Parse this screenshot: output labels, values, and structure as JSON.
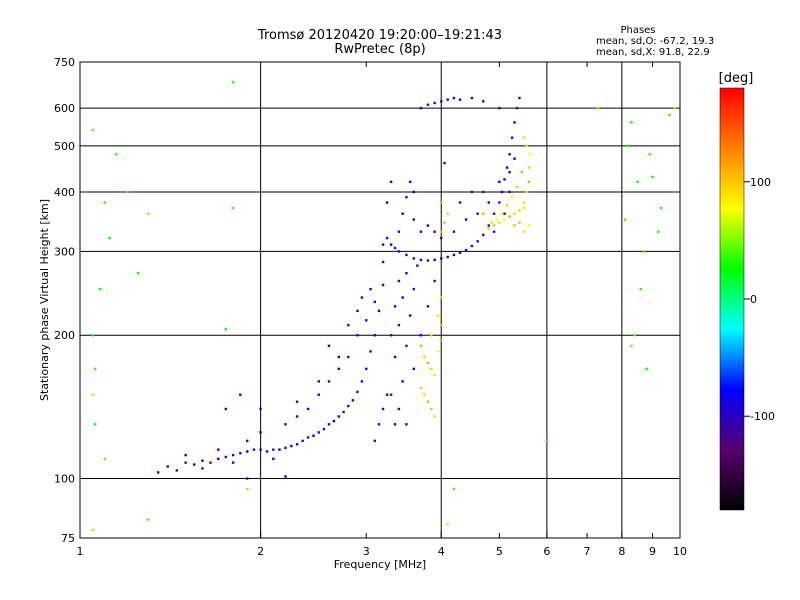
{
  "chart_data": {
    "type": "scatter",
    "title": "Tromsø 20120420 19:20:00–19:21:43",
    "subtitle": "RwPretec (8p)",
    "xlabel": "Frequency [MHz]",
    "ylabel": "Stationary phase Virtual Height [km]",
    "x_scale": "log",
    "y_scale": "log",
    "xlim": [
      1,
      10
    ],
    "ylim": [
      75,
      750
    ],
    "x_major_ticks": [
      1,
      2,
      4,
      6,
      8,
      10
    ],
    "x_minor_ticks": [
      3,
      5,
      7,
      9
    ],
    "y_ticks": [
      75,
      100,
      200,
      300,
      400,
      500,
      600,
      750
    ],
    "grid": true,
    "stats": {
      "heading": "Phases",
      "line1": "mean, sd,O:  -67.2, 19.3",
      "line2": "mean, sd,X:  91.8, 22.9"
    },
    "colorbar": {
      "label": "[deg]",
      "range": [
        -180,
        180
      ],
      "ticks": [
        100,
        0,
        -100
      ],
      "stops": [
        "#000000",
        "#5a0070",
        "#0000ff",
        "#00ffff",
        "#00ff00",
        "#ffff00",
        "#ff8000",
        "#ff0000"
      ]
    },
    "series": [
      {
        "trace": "O",
        "color_value": -95,
        "points": [
          [
            1.35,
            103
          ],
          [
            1.4,
            106
          ],
          [
            1.45,
            104
          ],
          [
            1.5,
            108
          ],
          [
            1.55,
            107
          ],
          [
            1.6,
            109
          ],
          [
            1.65,
            108
          ],
          [
            1.7,
            110
          ],
          [
            1.75,
            111
          ],
          [
            1.8,
            112
          ],
          [
            1.85,
            113
          ],
          [
            1.9,
            114
          ],
          [
            1.95,
            115
          ],
          [
            2.0,
            115
          ],
          [
            2.05,
            114
          ],
          [
            2.1,
            115
          ],
          [
            2.15,
            115
          ],
          [
            2.2,
            116
          ],
          [
            2.25,
            117
          ],
          [
            2.3,
            118
          ],
          [
            2.35,
            120
          ],
          [
            2.4,
            122
          ],
          [
            2.45,
            123
          ],
          [
            2.5,
            125
          ],
          [
            2.55,
            127
          ],
          [
            2.6,
            130
          ],
          [
            2.65,
            132
          ],
          [
            2.7,
            135
          ],
          [
            2.75,
            138
          ],
          [
            2.8,
            142
          ],
          [
            2.85,
            146
          ],
          [
            2.9,
            152
          ],
          [
            2.95,
            160
          ],
          [
            3.0,
            170
          ],
          [
            3.05,
            185
          ],
          [
            3.1,
            200
          ],
          [
            3.15,
            225
          ],
          [
            3.2,
            255
          ],
          [
            3.2,
            285
          ],
          [
            3.2,
            310
          ],
          [
            3.25,
            320
          ],
          [
            3.3,
            310
          ],
          [
            3.35,
            305
          ],
          [
            3.4,
            300
          ],
          [
            3.5,
            295
          ],
          [
            3.6,
            290
          ],
          [
            3.7,
            288
          ],
          [
            3.8,
            287
          ],
          [
            3.9,
            288
          ],
          [
            4.0,
            290
          ],
          [
            4.1,
            292
          ],
          [
            4.2,
            295
          ],
          [
            4.3,
            298
          ],
          [
            4.4,
            302
          ],
          [
            4.5,
            308
          ],
          [
            4.6,
            315
          ],
          [
            4.7,
            325
          ],
          [
            4.8,
            340
          ],
          [
            4.9,
            360
          ],
          [
            5.0,
            380
          ],
          [
            5.05,
            400
          ],
          [
            5.1,
            425
          ],
          [
            5.15,
            450
          ],
          [
            5.2,
            480
          ],
          [
            5.25,
            520
          ],
          [
            5.3,
            560
          ],
          [
            5.35,
            600
          ],
          [
            5.4,
            630
          ],
          [
            1.5,
            112
          ],
          [
            1.6,
            105
          ],
          [
            1.7,
            115
          ],
          [
            1.8,
            108
          ],
          [
            1.9,
            120
          ],
          [
            2.0,
            125
          ],
          [
            2.1,
            110
          ],
          [
            2.2,
            130
          ],
          [
            2.3,
            135
          ],
          [
            2.4,
            140
          ],
          [
            2.5,
            150
          ],
          [
            2.6,
            160
          ],
          [
            2.7,
            170
          ],
          [
            2.8,
            180
          ],
          [
            2.9,
            200
          ],
          [
            3.0,
            215
          ],
          [
            2.95,
            240
          ],
          [
            2.9,
            225
          ],
          [
            3.05,
            250
          ],
          [
            3.1,
            235
          ],
          [
            3.3,
            150
          ],
          [
            3.35,
            180
          ],
          [
            3.4,
            210
          ],
          [
            3.45,
            240
          ],
          [
            3.5,
            270
          ],
          [
            3.4,
            330
          ],
          [
            3.45,
            360
          ],
          [
            3.5,
            390
          ],
          [
            3.55,
            420
          ],
          [
            3.6,
            400
          ],
          [
            3.3,
            420
          ],
          [
            3.25,
            380
          ],
          [
            3.6,
            350
          ],
          [
            3.7,
            330
          ],
          [
            3.8,
            340
          ],
          [
            3.9,
            330
          ],
          [
            4.0,
            320
          ],
          [
            4.2,
            330
          ],
          [
            4.4,
            350
          ],
          [
            4.6,
            360
          ],
          [
            4.8,
            380
          ],
          [
            5.0,
            420
          ],
          [
            5.2,
            440
          ],
          [
            5.3,
            470
          ],
          [
            5.1,
            360
          ],
          [
            5.2,
            400
          ],
          [
            4.9,
            330
          ],
          [
            4.7,
            400
          ],
          [
            4.5,
            400
          ],
          [
            4.3,
            380
          ],
          [
            3.7,
            600
          ],
          [
            3.8,
            610
          ],
          [
            3.9,
            615
          ],
          [
            4.0,
            620
          ],
          [
            4.1,
            625
          ],
          [
            4.2,
            630
          ],
          [
            4.3,
            625
          ],
          [
            4.5,
            630
          ],
          [
            4.7,
            620
          ],
          [
            5.0,
            600
          ],
          [
            3.35,
            130
          ],
          [
            3.4,
            140
          ],
          [
            3.45,
            160
          ],
          [
            3.5,
            190
          ],
          [
            3.55,
            220
          ],
          [
            3.6,
            250
          ],
          [
            3.65,
            280
          ],
          [
            3.3,
            200
          ],
          [
            3.35,
            230
          ],
          [
            3.4,
            260
          ],
          [
            3.1,
            120
          ],
          [
            3.15,
            130
          ],
          [
            3.2,
            140
          ],
          [
            3.25,
            150
          ],
          [
            3.5,
            130
          ],
          [
            3.6,
            170
          ],
          [
            3.7,
            200
          ],
          [
            3.8,
            230
          ],
          [
            3.9,
            260
          ],
          [
            4.05,
            460
          ],
          [
            1.9,
            100
          ],
          [
            2.2,
            101
          ],
          [
            2.0,
            140
          ],
          [
            2.3,
            145
          ],
          [
            2.5,
            160
          ],
          [
            2.7,
            180
          ],
          [
            2.8,
            210
          ],
          [
            2.6,
            190
          ],
          [
            1.75,
            140
          ],
          [
            1.85,
            150
          ]
        ]
      },
      {
        "trace": "X",
        "color_value": 95,
        "points": [
          [
            3.75,
            180
          ],
          [
            3.8,
            175
          ],
          [
            3.85,
            170
          ],
          [
            3.9,
            165
          ],
          [
            3.95,
            185
          ],
          [
            4.0,
            195
          ],
          [
            3.7,
            155
          ],
          [
            3.75,
            150
          ],
          [
            3.8,
            145
          ],
          [
            3.85,
            140
          ],
          [
            3.9,
            135
          ],
          [
            3.7,
            190
          ],
          [
            4.0,
            210
          ],
          [
            3.95,
            220
          ],
          [
            4.0,
            240
          ],
          [
            3.85,
            200
          ],
          [
            4.0,
            330
          ],
          [
            4.05,
            345
          ],
          [
            4.1,
            360
          ],
          [
            4.0,
            380
          ],
          [
            4.8,
            335
          ],
          [
            4.9,
            340
          ],
          [
            5.0,
            345
          ],
          [
            5.1,
            350
          ],
          [
            5.2,
            355
          ],
          [
            5.3,
            360
          ],
          [
            5.4,
            365
          ],
          [
            5.5,
            370
          ],
          [
            5.3,
            340
          ],
          [
            5.4,
            345
          ],
          [
            5.5,
            380
          ],
          [
            5.55,
            400
          ],
          [
            5.6,
            420
          ],
          [
            5.6,
            450
          ],
          [
            5.6,
            480
          ],
          [
            5.55,
            500
          ],
          [
            5.5,
            520
          ],
          [
            5.45,
            440
          ],
          [
            5.35,
            410
          ],
          [
            5.25,
            390
          ],
          [
            5.15,
            375
          ],
          [
            5.05,
            360
          ],
          [
            4.95,
            350
          ],
          [
            4.85,
            345
          ],
          [
            5.5,
            330
          ],
          [
            5.6,
            340
          ],
          [
            4.7,
            360
          ]
        ]
      },
      {
        "trace": "noise",
        "color_value": 40,
        "points": [
          [
            1.05,
            540
          ],
          [
            1.05,
            200
          ],
          [
            1.1,
            380
          ],
          [
            1.08,
            250
          ],
          [
            1.2,
            400
          ],
          [
            1.25,
            270
          ],
          [
            1.3,
            360
          ],
          [
            1.15,
            480
          ],
          [
            1.05,
            150
          ],
          [
            1.1,
            110
          ],
          [
            1.3,
            82
          ],
          [
            1.05,
            78
          ],
          [
            1.75,
            206
          ],
          [
            1.8,
            680
          ],
          [
            1.8,
            370
          ],
          [
            1.9,
            95
          ],
          [
            8.1,
            350
          ],
          [
            8.3,
            560
          ],
          [
            8.5,
            420
          ],
          [
            8.7,
            300
          ],
          [
            9.2,
            330
          ],
          [
            9.6,
            580
          ],
          [
            8.4,
            200
          ],
          [
            8.6,
            250
          ],
          [
            9.0,
            430
          ],
          [
            8.2,
            500
          ],
          [
            7.3,
            600
          ],
          [
            6.0,
            120
          ],
          [
            4.2,
            95
          ],
          [
            4.1,
            80
          ],
          [
            8.8,
            170
          ],
          [
            8.9,
            480
          ],
          [
            9.3,
            370
          ],
          [
            1.06,
            170
          ],
          [
            1.06,
            130
          ],
          [
            1.12,
            320
          ],
          [
            8.3,
            190
          ],
          [
            9.8,
            600
          ]
        ]
      }
    ]
  }
}
